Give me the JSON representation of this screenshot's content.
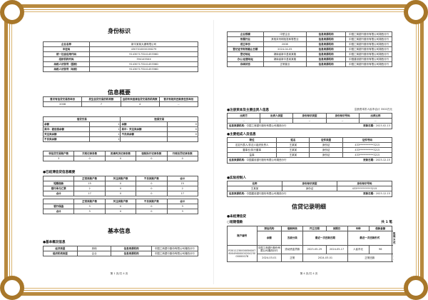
{
  "colors": {
    "frame": "#b8893e",
    "text": "#222222"
  },
  "left": {
    "identity_title": "身份标识",
    "identity": [
      [
        "企业名称",
        "新平某某大通有限公司"
      ],
      [
        "中征码",
        "4307010000156279"
      ],
      [
        "统一社会信用代码",
        "91430717324145336D"
      ],
      [
        "组织机构代码",
        "3941455XX"
      ],
      [
        "纳税人识别号（国税）",
        "91430717324145336D"
      ],
      [
        "纳税人识别号（地税）",
        "91430717324145336D"
      ]
    ],
    "summary_title": "信息概要",
    "summary_head": [
      "首次有信贷交易的年份",
      "发生信贷交易的机构数",
      "当前有未结清信贷交易的机构数",
      "首次有相关还款责任的年份"
    ],
    "summary_vals": [
      "2008",
      "7",
      "4",
      "--"
    ],
    "trade_head": [
      "借贷交易",
      "担保交易"
    ],
    "trade_rows": [
      [
        "余额",
        "1",
        "余额",
        "0"
      ],
      [
        "其中：被追偿余额",
        "1",
        "其中：关注类余额",
        "0"
      ],
      [
        "关注类余额",
        "1",
        "不良类余额",
        "0"
      ],
      [
        "不良类余额",
        "1",
        "",
        ""
      ]
    ],
    "records_head": [
      "非信贷交易账户数",
      "欠税记录条数",
      "民事判决记录条数",
      "强制执行记录条数",
      "行政处罚记录条数"
    ],
    "records_vals": [
      "3",
      "0",
      "0",
      "0",
      "0"
    ],
    "settled_title": "●已结清信贷信息概要",
    "settled_head": [
      "",
      "正常类账户数",
      "关注类账户数",
      "不良类账户数",
      "合计"
    ],
    "settled_rows": [
      [
        "短期借款",
        "15",
        "0",
        "0",
        "15"
      ],
      [
        "银行承兑汇票",
        "2",
        "0",
        "0",
        "2"
      ],
      [
        "合计",
        "17",
        "0",
        "0",
        "17"
      ]
    ],
    "settled2_head": [
      "",
      "正常类账户数",
      "关注类账户数",
      "不良类账户数",
      "合计"
    ],
    "settled2_rows": [
      [
        "银行保函",
        "3",
        "0",
        "0",
        "3"
      ],
      [
        "合计",
        "3",
        "0",
        "0",
        "3"
      ]
    ],
    "basic_title": "基本信息",
    "basic_sub": "●基本概况信息",
    "basic_rows": [
      [
        "经济类型",
        "其他",
        "信息来源机构",
        "中国工商银行股份有限公司湘西分行"
      ],
      [
        "组织机构类型",
        "企业",
        "信息来源机构",
        "中国工商银行股份有限公司湘西分行"
      ]
    ],
    "footer": "第 1 页/共 4 页"
  },
  "right": {
    "basic_rows": [
      [
        "企业规模",
        "中型企业",
        "信息来源机构",
        "中国工商银行股份有限公司湘西分行"
      ],
      [
        "所属行业",
        "其他未列明批发和零售业",
        "信息来源机构",
        "中国工商银行股份有限公司湘西分行"
      ],
      [
        "成立年份",
        "2008",
        "信息来源机构",
        "中国工商银行股份有限公司湘西分行"
      ],
      [
        "登记证书有效截止日期",
        "2024-04-05",
        "信息来源机构",
        "中国工商银行股份有限公司湘西分行"
      ],
      [
        "登记地址",
        "湖南省新平县某某路",
        "信息来源机构",
        "中国工商银行股份有限公司湘西分行"
      ],
      [
        "办公/经营地址",
        "湖南省新平县某某路",
        "信息来源机构",
        "中国建设银行股份有限公司湘西分行"
      ],
      [
        "存续状态",
        "正常营业",
        "信息来源机构",
        "中国工商银行股份有限公司湘西分行"
      ]
    ],
    "capital_title": "●注册资本及主要出资人信息",
    "capital_note": "注册资本折人民币合计 3500万元",
    "capital_head": [
      "出资方",
      "出资人类型",
      "身份标识类型",
      "身份标识号码",
      "出资比例"
    ],
    "capital_vals": [
      "--",
      "--",
      "--",
      "--",
      "--"
    ],
    "capital_src_label": "信息来源机构：",
    "capital_src": "中国工商银行股份有限公司湘西分行",
    "capital_date_label": "更新日期：",
    "capital_date": "2023-02-13",
    "members_title": "●主要组成人员信息",
    "members_head": [
      "职位",
      "姓名",
      "证件类型",
      "证件号码"
    ],
    "members_rows": [
      [
        "法定代表人/非法人组织负责人",
        "王某某",
        "身份证",
        "433***********3215"
      ],
      [
        "董事长/执行董事",
        "王某某",
        "身份证",
        "433***********3215"
      ],
      [
        "监事",
        "王某某",
        "身份证",
        "433***********3215"
      ]
    ],
    "members_src_label": "信息来源机构：",
    "members_src": "中国建设银行股份有限公司湘西分行",
    "members_date_label": "更新日期：",
    "members_date": "2023-12-15",
    "controller_title": "●实际控制人",
    "controller_head": [
      "名称",
      "身份标识类型",
      "身份标识号码"
    ],
    "controller_vals": [
      "王某某",
      "身份证",
      "433***********3215"
    ],
    "controller_src_label": "信息来源机构：",
    "controller_src": "中国建设银行股份有限公司湘西分行",
    "controller_date_label": "更新日期：",
    "controller_date": "2023-12-15",
    "credit_title": "信贷记录明细",
    "unsettled_title": "●未结清信贷",
    "short_loan": "○短期借款",
    "count": "共 1 笔",
    "loan_head1": [
      "账户编号",
      "授信机构",
      "借款种类",
      "开立日期",
      "到期日",
      "币种",
      "借款金额"
    ],
    "loan_head2": [
      "余额",
      "五级分类",
      "最近一次还款日期",
      "最近一次还款形式",
      "担保方式"
    ],
    "loan_row1": [
      "R30112300000560078004960000020423000000078",
      "中国工商银行股份有限公司湘西分行",
      "流动资金贷款",
      "2023-05-29",
      "2024-05-17",
      "人民币元",
      "96"
    ],
    "loan_row2": [
      "2024-03-01",
      "正常",
      "2024-03-01",
      "正常还款",
      "--"
    ],
    "footer": "第 4 页/共 4 页"
  }
}
